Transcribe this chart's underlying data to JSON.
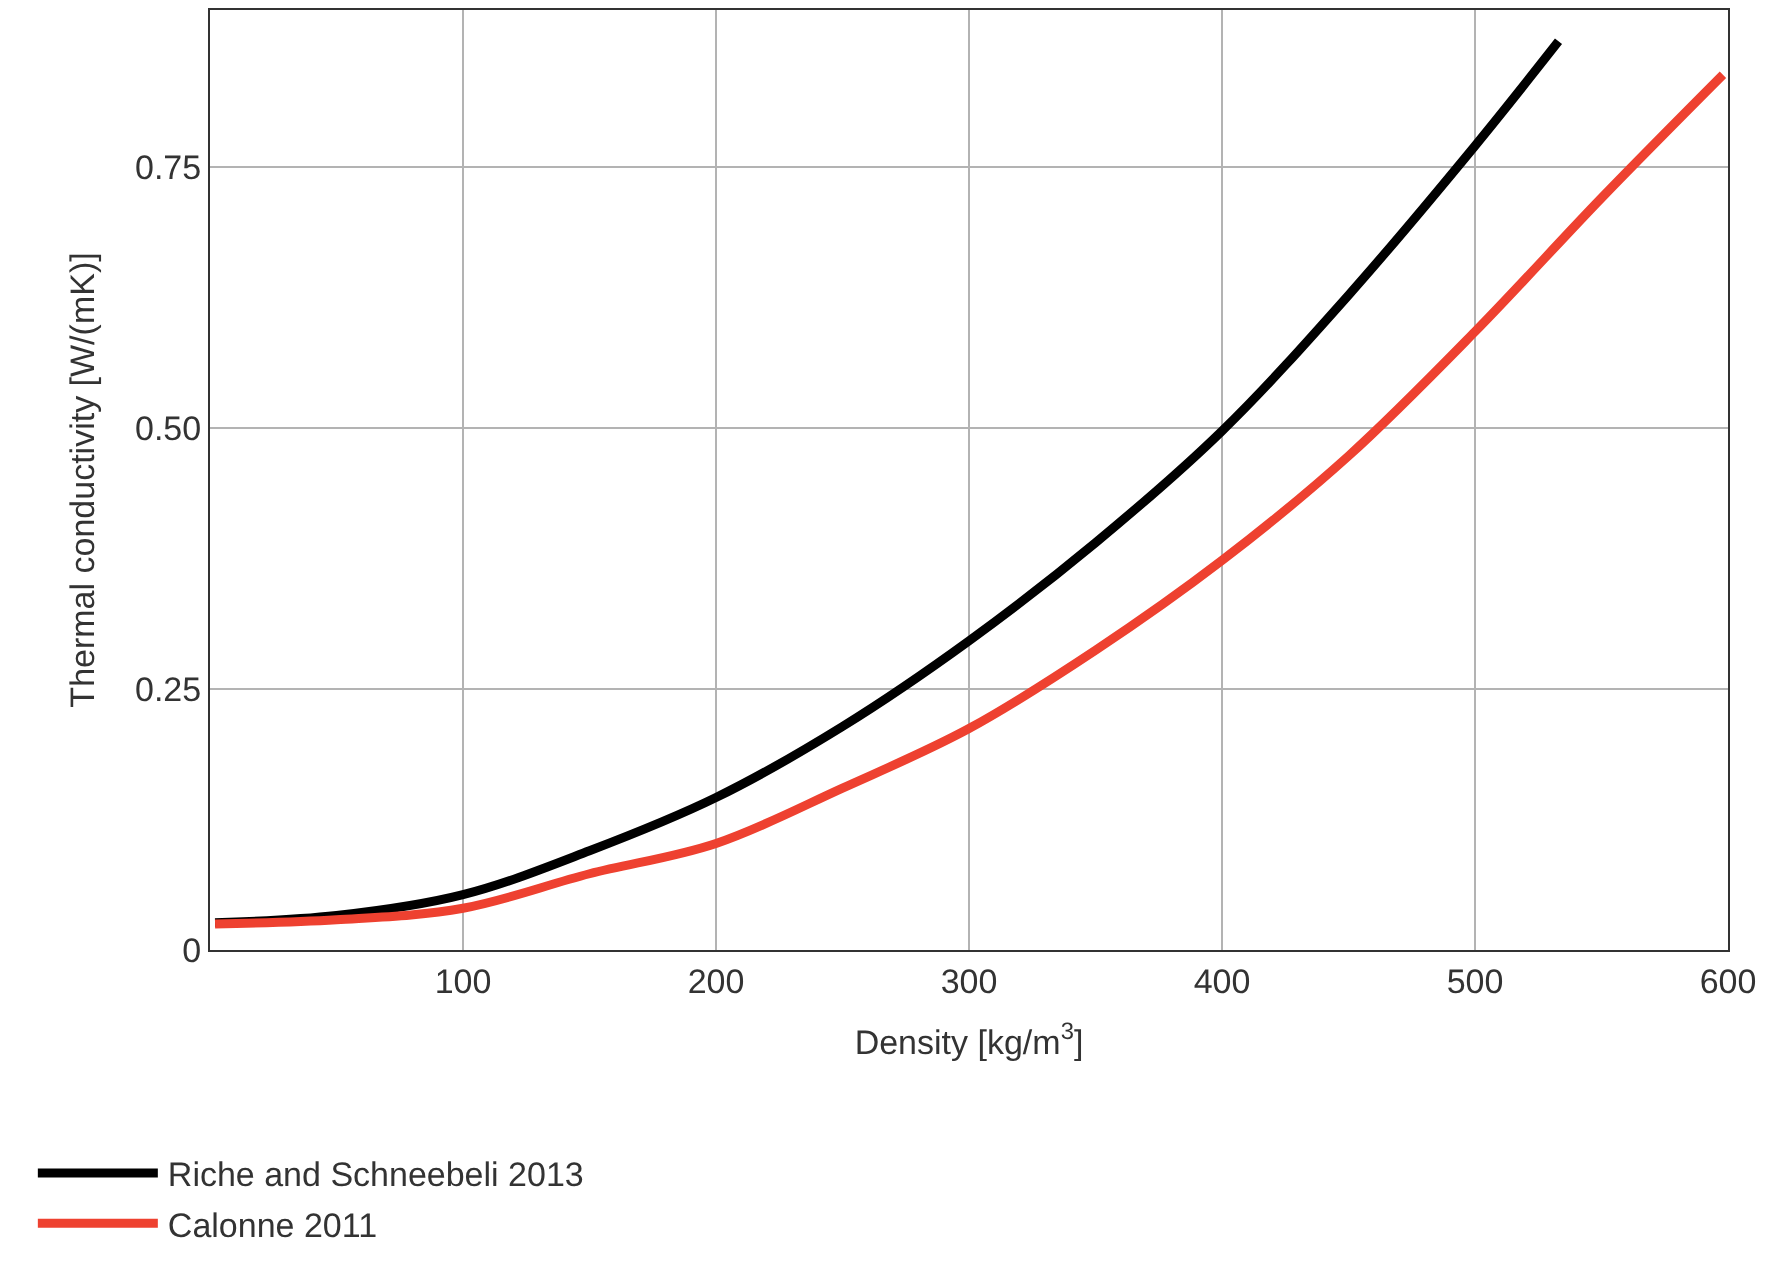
{
  "chart_data": {
    "type": "line",
    "xlabel": "Density [kg/m$^{3}$]",
    "ylabel": "Thermal conductivity [W/(mK)]",
    "xlim": [
      0,
      600
    ],
    "xticks": [
      100,
      200,
      300,
      400,
      500,
      600
    ],
    "ylim": [
      0,
      0.9
    ],
    "yticks": [
      0,
      {
        "value": 0.25,
        "label": "0.25"
      },
      {
        "value": 0.5,
        "label": "0.50"
      },
      {
        "value": 0.75,
        "label": "0.75"
      }
    ],
    "grid": true,
    "legend": "bottom",
    "line_style": "solid",
    "marker": "none",
    "series": [
      {
        "name": "Riche and Schneebeli 2013",
        "color": "#000000",
        "x": [
          2,
          50,
          100,
          150,
          200,
          250,
          300,
          350,
          400,
          450,
          500,
          533
        ],
        "values": [
          0.026,
          0.033,
          0.053,
          0.095,
          0.146,
          0.214,
          0.296,
          0.39,
          0.497,
          0.627,
          0.77,
          0.87
        ]
      },
      {
        "name": "Calonne 2011",
        "color": "#ee4130",
        "x": [
          2,
          50,
          100,
          150,
          200,
          250,
          300,
          350,
          400,
          450,
          500,
          550,
          598
        ],
        "values": [
          0.025,
          0.029,
          0.04,
          0.073,
          0.102,
          0.155,
          0.212,
          0.287,
          0.373,
          0.473,
          0.592,
          0.72,
          0.838
        ]
      }
    ]
  }
}
